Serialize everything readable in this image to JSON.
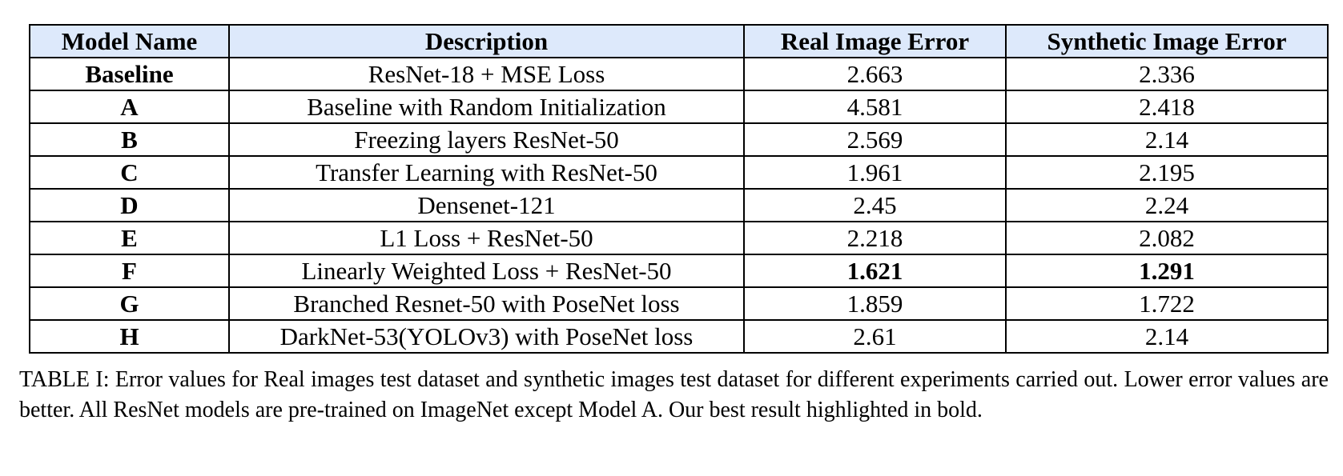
{
  "table": {
    "headers": [
      "Model Name",
      "Description",
      "Real Image Error",
      "Synthetic Image Error"
    ],
    "rows": [
      {
        "model": "Baseline",
        "description": "ResNet-18 + MSE Loss",
        "real": "2.663",
        "synthetic": "2.336"
      },
      {
        "model": "A",
        "description": "Baseline with Random Initialization",
        "real": "4.581",
        "synthetic": "2.418"
      },
      {
        "model": "B",
        "description": "Freezing layers ResNet-50",
        "real": "2.569",
        "synthetic": "2.14"
      },
      {
        "model": "C",
        "description": "Transfer Learning with ResNet-50",
        "real": "1.961",
        "synthetic": "2.195"
      },
      {
        "model": "D",
        "description": "Densenet-121",
        "real": "2.45",
        "synthetic": "2.24"
      },
      {
        "model": "E",
        "description": "L1 Loss + ResNet-50",
        "real": "2.218",
        "synthetic": "2.082"
      },
      {
        "model": "F",
        "description": "Linearly Weighted Loss + ResNet-50",
        "real": "1.621",
        "synthetic": "1.291",
        "best": true
      },
      {
        "model": "G",
        "description": "Branched Resnet-50 with PoseNet loss",
        "real": "1.859",
        "synthetic": "1.722"
      },
      {
        "model": "H",
        "description": "DarkNet-53(YOLOv3) with PoseNet loss",
        "real": "2.61",
        "synthetic": "2.14"
      }
    ]
  },
  "caption": "TABLE I: Error values for Real images test dataset and synthetic images test dataset for different experiments carried out. Lower error values are better. All ResNet models are pre-trained on ImageNet except Model A. Our best result highlighted in bold.",
  "colors": {
    "header_background": "#dde9fb"
  }
}
